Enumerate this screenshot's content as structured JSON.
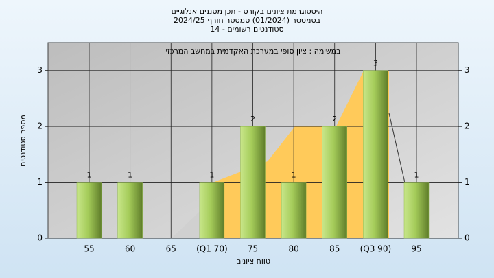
{
  "chart_data": {
    "type": "bar",
    "title": "היסטוגרמת ציונים בקורס - תכן מסננים אנלוגיים",
    "subtitle": "בסמסטר  (01/2024)  סמסטר חורף 2024/25",
    "subtitle2": "סטודנטים רשומים - 14",
    "annotation": "במשימה : ציון סופי במערכת האקדמית במחשב המרכזי",
    "x_label": "טווח ציונים",
    "y_label": "מספר סטודנטים",
    "categories": [
      "55",
      "60",
      "65",
      "(Q1 70)",
      "75",
      "80",
      "85",
      "(Q3 90)",
      "95"
    ],
    "values": [
      1,
      1,
      0,
      1,
      2,
      1,
      2,
      3,
      1
    ],
    "color": "#8fb84a",
    "ylim": [
      0,
      3.5
    ],
    "yticks": [
      0,
      1,
      2,
      3
    ],
    "grid": true
  }
}
